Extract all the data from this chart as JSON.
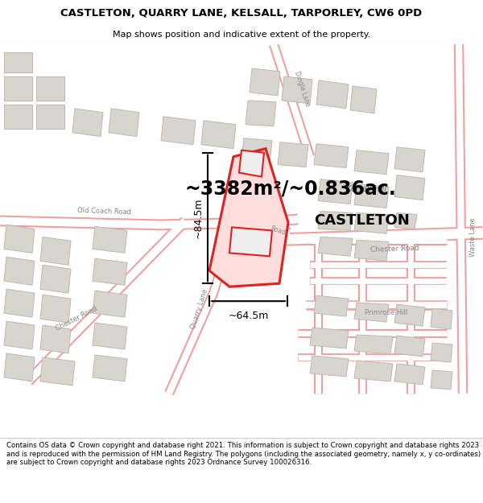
{
  "title_line1": "CASTLETON, QUARRY LANE, KELSALL, TARPORLEY, CW6 0PD",
  "title_line2": "Map shows position and indicative extent of the property.",
  "footer_text": "Contains OS data © Crown copyright and database right 2021. This information is subject to Crown copyright and database rights 2023 and is reproduced with the permission of HM Land Registry. The polygons (including the associated geometry, namely x, y co-ordinates) are subject to Crown copyright and database rights 2023 Ordnance Survey 100026316.",
  "area_text": "~3382m²/~0.836ac.",
  "property_name": "CASTLETON",
  "dim_width": "~64.5m",
  "dim_height": "~84.5m",
  "map_bg": "#ffffff",
  "road_outline_color": "#f0a0a0",
  "road_fill_color": "#ffffff",
  "building_color": "#d8d4ce",
  "building_edge": "#c0b8b0",
  "highlight_color": "#dd2222",
  "text_color_dark": "#000000",
  "text_color_road": "#888888",
  "title_bg": "#ffffff",
  "footer_bg": "#ffffff"
}
